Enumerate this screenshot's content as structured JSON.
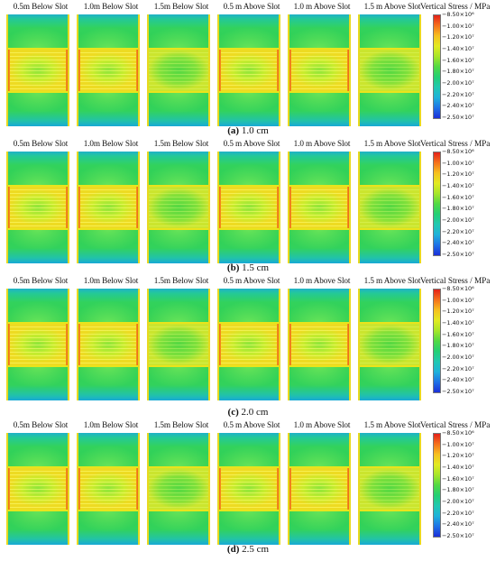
{
  "panel_titles": [
    "0.5m Below Slot",
    "1.0m Below Slot",
    "1.5m Below Slot",
    "0.5 m Above Slot",
    "1.0 m Above Slot",
    "1.5 m Above Slot"
  ],
  "legend": {
    "title": "Vertical Stress / MPa",
    "ticks": [
      "−8.50×10⁶",
      "−1.00×10⁷",
      "−1.20×10⁷",
      "−1.40×10⁷",
      "−1.60×10⁷",
      "−1.80×10⁷",
      "−2.00×10⁷",
      "−2.20×10⁷",
      "−2.40×10⁷",
      "−2.50×10⁷"
    ]
  },
  "rows": [
    {
      "label": "(a)",
      "value": " 1.0 cm"
    },
    {
      "label": "(b)",
      "value": " 1.5 cm"
    },
    {
      "label": "(c)",
      "value": " 2.0 cm"
    },
    {
      "label": "(d)",
      "value": " 2.5 cm"
    }
  ],
  "colors": {
    "high": "#e4221a",
    "mid": "#2ecd4c",
    "low": "#1c2fd8"
  }
}
